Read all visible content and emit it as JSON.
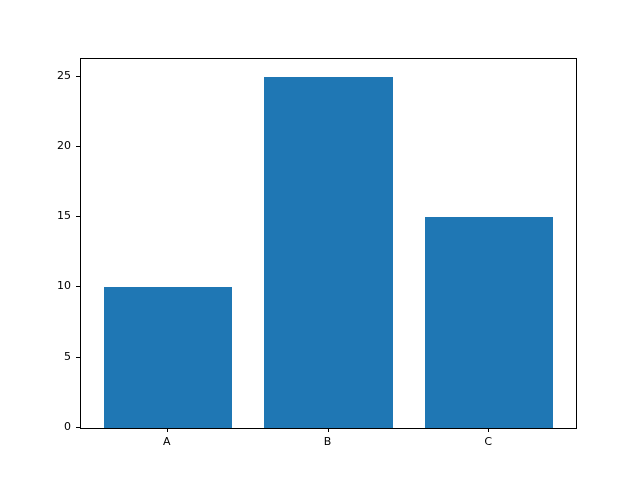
{
  "chart_data": {
    "type": "bar",
    "categories": [
      "A",
      "B",
      "C"
    ],
    "values": [
      10,
      25,
      15
    ],
    "yticks": [
      0,
      5,
      10,
      15,
      20,
      25
    ],
    "ylim": [
      0,
      26.25
    ],
    "xlim": [
      -0.54,
      2.54
    ],
    "bar_width_units": 0.8,
    "bar_color": "#1f77b4",
    "grid": false,
    "legend_position": "none",
    "title": "",
    "xlabel": "",
    "ylabel": ""
  },
  "colors": {
    "background": "#ffffff",
    "spine": "#000000",
    "tick_text": "#000000"
  }
}
